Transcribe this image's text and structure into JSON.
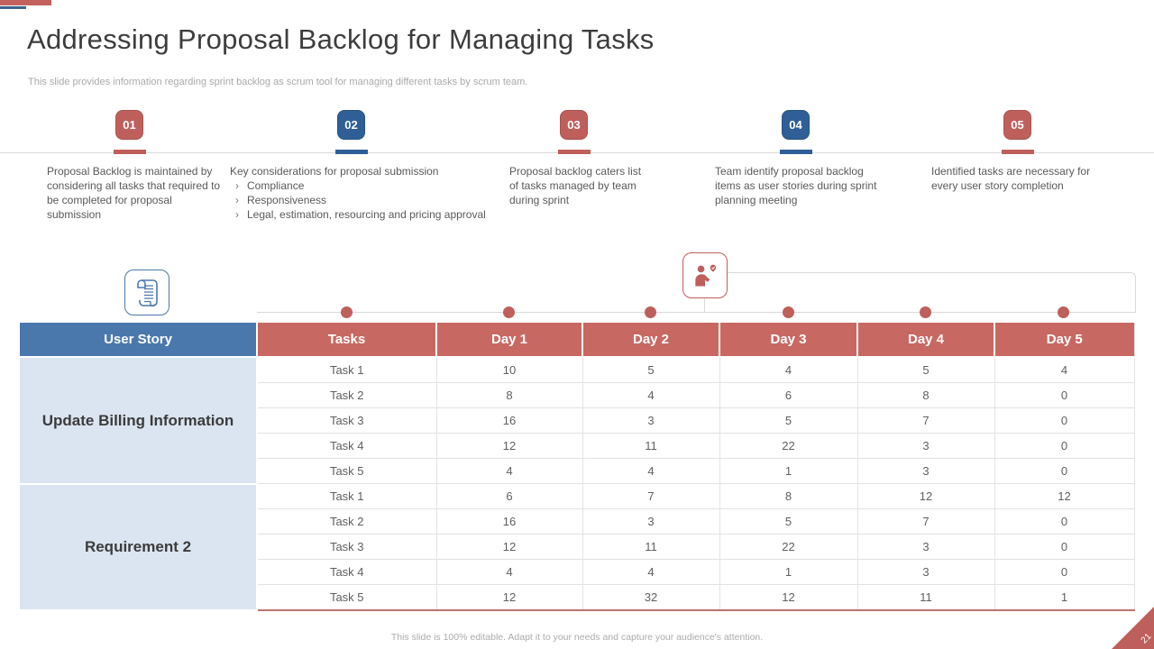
{
  "slide": {
    "title": "Addressing Proposal Backlog for Managing Tasks",
    "subtitle": "This slide provides information regarding sprint backlog as scrum tool for managing different tasks by scrum team.",
    "footer_note": "This slide is 100% editable.  Adapt it to your needs and capture your audience's attention.",
    "page_number": "21"
  },
  "colors": {
    "rose": "#bf5f5c",
    "blue": "#2f5f96",
    "header_blue": "#4a78ad",
    "header_rose": "#c86862",
    "light_blue": "#dbe5f1",
    "divider_gray": "#d9d9d9",
    "table_border_bottom": "#c0736e"
  },
  "icons": {
    "left_icon": "scroll-document-icon",
    "right_icon": "person-feedback-icon"
  },
  "steps": [
    {
      "number": "01",
      "accent": "rose",
      "text": "Proposal Backlog is maintained by considering all tasks that required to be completed for proposal submission",
      "bullets": []
    },
    {
      "number": "02",
      "accent": "blue",
      "text": "Key considerations for proposal submission",
      "bullets": [
        "Compliance",
        "Responsiveness",
        "Legal, estimation, resourcing and pricing approval"
      ]
    },
    {
      "number": "03",
      "accent": "rose",
      "text": "Proposal backlog caters list of tasks managed by team during sprint",
      "bullets": []
    },
    {
      "number": "04",
      "accent": "blue",
      "text": "Team identify proposal backlog items as user stories during sprint planning meeting",
      "bullets": []
    },
    {
      "number": "05",
      "accent": "rose",
      "text": "Identified tasks are necessary for every user story completion",
      "bullets": []
    }
  ],
  "table": {
    "headers": [
      "User Story",
      "Tasks",
      "Day 1",
      "Day 2",
      "Day 3",
      "Day 4",
      "Day 5"
    ],
    "groups": [
      {
        "user_story": "Update Billing Information",
        "rows": [
          {
            "task": "Task 1",
            "values": [
              "10",
              "5",
              "4",
              "5",
              "4"
            ]
          },
          {
            "task": "Task 2",
            "values": [
              "8",
              "4",
              "6",
              "8",
              "0"
            ]
          },
          {
            "task": "Task 3",
            "values": [
              "16",
              "3",
              "5",
              "7",
              "0"
            ]
          },
          {
            "task": "Task 4",
            "values": [
              "12",
              "11",
              "22",
              "3",
              "0"
            ]
          },
          {
            "task": "Task 5",
            "values": [
              "4",
              "4",
              "1",
              "3",
              "0"
            ]
          }
        ]
      },
      {
        "user_story": "Requirement 2",
        "rows": [
          {
            "task": "Task 1",
            "values": [
              "6",
              "7",
              "8",
              "12",
              "12"
            ]
          },
          {
            "task": "Task 2",
            "values": [
              "16",
              "3",
              "5",
              "7",
              "0"
            ]
          },
          {
            "task": "Task 3",
            "values": [
              "12",
              "11",
              "22",
              "3",
              "0"
            ]
          },
          {
            "task": "Task 4",
            "values": [
              "4",
              "4",
              "1",
              "3",
              "0"
            ]
          },
          {
            "task": "Task 5",
            "values": [
              "12",
              "32",
              "12",
              "11",
              "1"
            ]
          }
        ]
      }
    ]
  }
}
